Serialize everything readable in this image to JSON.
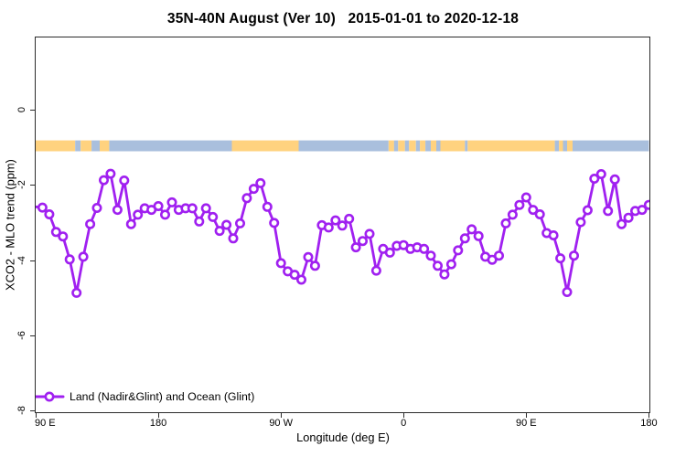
{
  "chart_data": {
    "type": "line",
    "title": "35N-40N August (Ver 10)   2015-01-01 to 2020-12-18",
    "xlabel": "Longitude (deg E)",
    "ylabel": "XCO2 - MLO trend (ppm)",
    "grid": false,
    "frame": "box",
    "legend_position": "bottom-left",
    "xlim": [
      90,
      540.4
    ],
    "ylim": [
      -8.05,
      1.93
    ],
    "x_ticks": [
      {
        "lon": 90,
        "label": "90 E"
      },
      {
        "lon": 180,
        "label": "180"
      },
      {
        "lon": 270,
        "label": "90 W"
      },
      {
        "lon": 360,
        "label": "0"
      },
      {
        "lon": 450,
        "label": "90 E"
      },
      {
        "lon": 540,
        "label": "180"
      }
    ],
    "y_ticks": [
      {
        "v": 0,
        "label": "0"
      },
      {
        "v": -2,
        "label": "-2"
      },
      {
        "v": -4,
        "label": "-4"
      },
      {
        "v": -6,
        "label": "-6"
      },
      {
        "v": -8,
        "label": "-8"
      }
    ],
    "series": [
      {
        "name": "Land (Nadir&Glint) and Ocean (Glint)",
        "color": "#A020F0",
        "marker": "circle-open",
        "lead_in": {
          "lon": 90,
          "value": -2.58
        },
        "x": [
          95,
          100,
          105,
          110,
          115,
          120,
          125,
          130,
          135,
          140,
          145,
          150,
          155,
          160,
          165,
          170,
          175,
          180,
          185,
          190,
          195,
          200,
          205,
          210,
          215,
          220,
          225,
          230,
          235,
          240,
          245,
          250,
          255,
          260,
          265,
          270,
          275,
          280,
          285,
          290,
          295,
          300,
          305,
          310,
          315,
          320,
          325,
          330,
          335,
          340,
          345,
          350,
          355,
          360,
          365,
          370,
          375,
          380,
          385,
          390,
          395,
          400,
          405,
          410,
          415,
          420,
          425,
          430,
          435,
          440,
          445,
          450,
          455,
          460,
          465,
          470,
          475,
          480,
          485,
          490,
          495,
          500,
          505,
          510,
          515,
          520,
          525,
          530,
          535,
          540
        ],
        "values": [
          -2.6,
          -2.78,
          -3.25,
          -3.37,
          -3.98,
          -4.87,
          -3.91,
          -3.04,
          -2.61,
          -1.87,
          -1.7,
          -2.66,
          -1.88,
          -3.04,
          -2.79,
          -2.62,
          -2.66,
          -2.56,
          -2.79,
          -2.46,
          -2.66,
          -2.62,
          -2.62,
          -2.97,
          -2.62,
          -2.85,
          -3.22,
          -3.06,
          -3.42,
          -3.02,
          -2.35,
          -2.1,
          -1.95,
          -2.58,
          -3.01,
          -4.08,
          -4.3,
          -4.39,
          -4.52,
          -3.92,
          -4.15,
          -3.07,
          -3.13,
          -2.94,
          -3.08,
          -2.9,
          -3.66,
          -3.49,
          -3.3,
          -4.28,
          -3.7,
          -3.8,
          -3.62,
          -3.6,
          -3.7,
          -3.66,
          -3.7,
          -3.88,
          -4.15,
          -4.38,
          -4.11,
          -3.74,
          -3.42,
          -3.18,
          -3.36,
          -3.91,
          -3.99,
          -3.88,
          -3.02,
          -2.79,
          -2.53,
          -2.33,
          -2.66,
          -2.78,
          -3.28,
          -3.34,
          -3.95,
          -4.85,
          -3.88,
          -2.99,
          -2.67,
          -1.83,
          -1.71,
          -2.69,
          -1.85,
          -3.04,
          -2.87,
          -2.69,
          -2.66,
          -2.53
        ]
      }
    ],
    "surface_band": {
      "value_top": -0.81,
      "value_bottom": -1.1,
      "land_color": "#FFD27F",
      "ocean_color": "#A9BFDD",
      "segments": [
        {
          "from": 90,
          "to": 119,
          "surface": "land"
        },
        {
          "from": 119,
          "to": 123,
          "surface": "ocean"
        },
        {
          "from": 123,
          "to": 131,
          "surface": "land"
        },
        {
          "from": 131,
          "to": 137,
          "surface": "ocean"
        },
        {
          "from": 137,
          "to": 144,
          "surface": "land"
        },
        {
          "from": 144,
          "to": 234,
          "surface": "ocean"
        },
        {
          "from": 234,
          "to": 283,
          "surface": "land"
        },
        {
          "from": 283,
          "to": 349,
          "surface": "ocean"
        },
        {
          "from": 349,
          "to": 353,
          "surface": "land"
        },
        {
          "from": 353,
          "to": 356,
          "surface": "ocean"
        },
        {
          "from": 356,
          "to": 361,
          "surface": "land"
        },
        {
          "from": 361,
          "to": 364,
          "surface": "ocean"
        },
        {
          "from": 364,
          "to": 369,
          "surface": "land"
        },
        {
          "from": 369,
          "to": 372,
          "surface": "ocean"
        },
        {
          "from": 372,
          "to": 376,
          "surface": "land"
        },
        {
          "from": 376,
          "to": 380,
          "surface": "ocean"
        },
        {
          "from": 380,
          "to": 384,
          "surface": "land"
        },
        {
          "from": 384,
          "to": 387,
          "surface": "ocean"
        },
        {
          "from": 387,
          "to": 405,
          "surface": "land"
        },
        {
          "from": 405,
          "to": 407,
          "surface": "ocean"
        },
        {
          "from": 407,
          "to": 471,
          "surface": "land"
        },
        {
          "from": 471,
          "to": 474,
          "surface": "ocean"
        },
        {
          "from": 474,
          "to": 477,
          "surface": "land"
        },
        {
          "from": 477,
          "to": 480,
          "surface": "ocean"
        },
        {
          "from": 480,
          "to": 484,
          "surface": "land"
        },
        {
          "from": 484,
          "to": 540,
          "surface": "ocean"
        }
      ]
    }
  }
}
